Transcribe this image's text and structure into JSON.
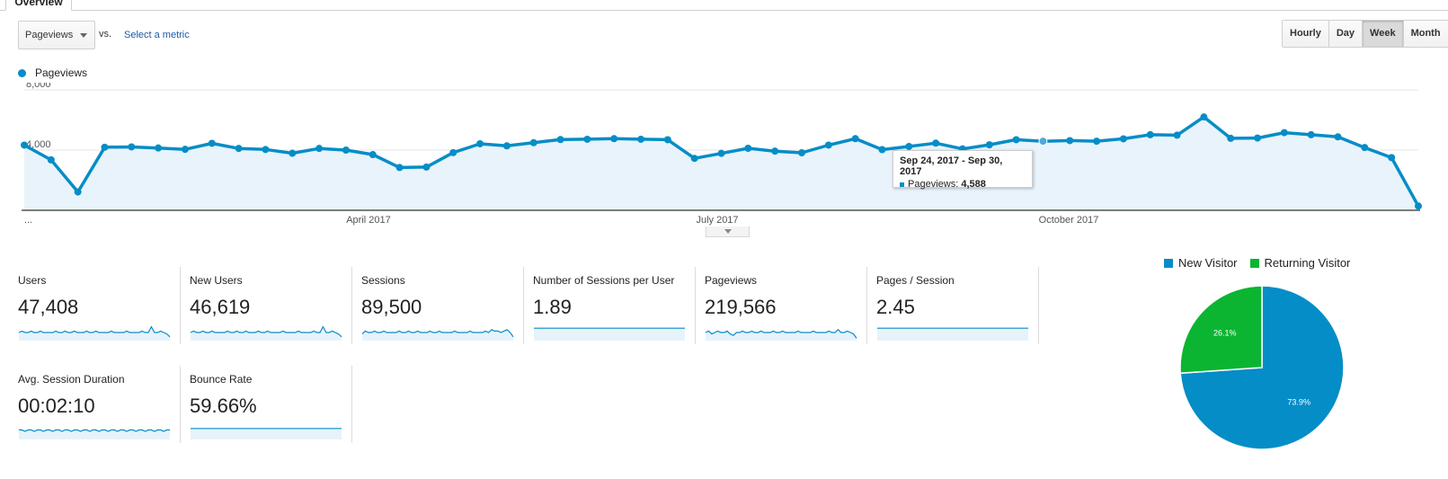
{
  "tab": {
    "label": "Overview"
  },
  "controls": {
    "metric_select": "Pageviews",
    "vs_label": "vs.",
    "select_metric_link": "Select a metric",
    "time_buttons": [
      {
        "label": "Hourly",
        "active": false
      },
      {
        "label": "Day",
        "active": false
      },
      {
        "label": "Week",
        "active": true
      },
      {
        "label": "Month",
        "active": false
      }
    ]
  },
  "legend": {
    "label": "Pageviews",
    "color": "#058dc7"
  },
  "chart_data": [
    {
      "type": "area",
      "series": [
        {
          "name": "Pageviews",
          "color": "#058dc7",
          "values": [
            4330,
            3350,
            1220,
            4190,
            4210,
            4140,
            4050,
            4450,
            4110,
            4040,
            3790,
            4110,
            4000,
            3700,
            2840,
            2870,
            3830,
            4420,
            4280,
            4490,
            4700,
            4720,
            4760,
            4720,
            4690,
            3450,
            3780,
            4120,
            3930,
            3820,
            4330,
            4760,
            4030,
            4240,
            4460,
            4080,
            4350,
            4690,
            4588,
            4630,
            4590,
            4750,
            5020,
            4990,
            6200,
            4780,
            4800,
            5160,
            5020,
            4880,
            4170,
            3500,
            280
          ]
        }
      ],
      "y_ticks": [
        "4,000",
        "8,000"
      ],
      "ylim": [
        0,
        8000
      ],
      "x_tick_labels": [
        "...",
        "April 2017",
        "July 2017",
        "October 2017"
      ],
      "tooltip": {
        "title": "Sep 24, 2017 - Sep 30, 2017",
        "label": "Pageviews:",
        "value": "4,588",
        "index": 38
      },
      "grid": true
    },
    {
      "type": "pie",
      "slices": [
        {
          "name": "New Visitor",
          "value": 73.9,
          "label": "73.9%",
          "color": "#058dc7"
        },
        {
          "name": "Returning Visitor",
          "value": 26.1,
          "label": "26.1%",
          "color": "#0bb531"
        }
      ]
    }
  ],
  "metrics": [
    {
      "label": "Users",
      "value": "47,408",
      "spark": [
        5,
        6,
        5,
        5,
        6,
        5,
        5,
        6,
        5,
        5,
        5,
        5,
        6,
        5,
        5,
        6,
        5,
        5,
        6,
        5,
        5,
        5,
        6,
        5,
        5,
        6,
        5,
        5,
        5,
        5,
        6,
        5,
        5,
        5,
        5,
        6,
        5,
        5,
        5,
        5,
        6,
        5,
        5,
        9,
        5,
        5,
        6,
        5,
        4,
        2
      ]
    },
    {
      "label": "New Users",
      "value": "46,619",
      "spark": [
        5,
        6,
        5,
        5,
        6,
        5,
        5,
        6,
        5,
        5,
        5,
        5,
        6,
        5,
        5,
        6,
        5,
        5,
        6,
        5,
        5,
        5,
        6,
        5,
        5,
        6,
        5,
        5,
        5,
        5,
        6,
        5,
        5,
        5,
        5,
        6,
        5,
        5,
        5,
        5,
        6,
        5,
        5,
        9,
        5,
        5,
        6,
        5,
        4,
        2
      ]
    },
    {
      "label": "Sessions",
      "value": "89,500",
      "spark": [
        4,
        6,
        5,
        5,
        6,
        5,
        5,
        6,
        5,
        5,
        5,
        5,
        6,
        5,
        5,
        6,
        5,
        5,
        6,
        5,
        5,
        5,
        6,
        5,
        5,
        6,
        5,
        5,
        5,
        5,
        6,
        5,
        5,
        5,
        5,
        6,
        5,
        5,
        5,
        5,
        6,
        5,
        7,
        6,
        6,
        5,
        6,
        7,
        5,
        2
      ]
    },
    {
      "label": "Number of Sessions per User",
      "value": "1.89",
      "spark": [
        8,
        8,
        8,
        8,
        8,
        8,
        8,
        8,
        8,
        8,
        8,
        8,
        8,
        8,
        8,
        8,
        8,
        8,
        8,
        8,
        8,
        8,
        8,
        8,
        8,
        8,
        8,
        8,
        8,
        8,
        8,
        8,
        8,
        8,
        8,
        8,
        8,
        8,
        8,
        8,
        8,
        8,
        8,
        8,
        8,
        8,
        8,
        8,
        8,
        8
      ]
    },
    {
      "label": "Pageviews",
      "value": "219,566",
      "spark": [
        5,
        6,
        4,
        5,
        6,
        5,
        5,
        6,
        4,
        3,
        5,
        5,
        6,
        5,
        5,
        6,
        5,
        5,
        6,
        5,
        5,
        5,
        6,
        5,
        5,
        6,
        5,
        5,
        5,
        5,
        6,
        5,
        5,
        5,
        5,
        6,
        5,
        5,
        5,
        5,
        6,
        5,
        5,
        7,
        5,
        5,
        6,
        5,
        4,
        1
      ]
    },
    {
      "label": "Pages / Session",
      "value": "2.45",
      "spark": [
        8,
        8,
        8,
        8,
        8,
        8,
        8,
        8,
        8,
        8,
        8,
        8,
        8,
        8,
        8,
        8,
        8,
        8,
        8,
        8,
        8,
        8,
        8,
        8,
        8,
        8,
        8,
        8,
        8,
        8,
        8,
        8,
        8,
        8,
        8,
        8,
        8,
        8,
        8,
        8,
        8,
        8,
        8,
        8,
        8,
        8,
        8,
        8,
        8,
        8
      ]
    },
    {
      "label": "Avg. Session Duration",
      "value": "00:02:10",
      "spark": [
        6,
        6,
        5,
        6,
        6,
        5,
        6,
        6,
        5,
        6,
        6,
        5,
        6,
        6,
        5,
        6,
        6,
        5,
        6,
        6,
        5,
        6,
        6,
        5,
        6,
        6,
        5,
        6,
        6,
        5,
        6,
        6,
        5,
        6,
        6,
        5,
        6,
        6,
        5,
        6,
        6,
        5,
        6,
        6,
        5,
        6,
        6,
        5,
        6,
        6
      ]
    },
    {
      "label": "Bounce Rate",
      "value": "59.66%",
      "spark": [
        7,
        7,
        7,
        7,
        7,
        7,
        7,
        7,
        7,
        7,
        7,
        7,
        7,
        7,
        7,
        7,
        7,
        7,
        7,
        7,
        7,
        7,
        7,
        7,
        7,
        7,
        7,
        7,
        7,
        7,
        7,
        7,
        7,
        7,
        7,
        7,
        7,
        7,
        7,
        7,
        7,
        7,
        7,
        7,
        7,
        7,
        7,
        7,
        7,
        7
      ]
    }
  ]
}
